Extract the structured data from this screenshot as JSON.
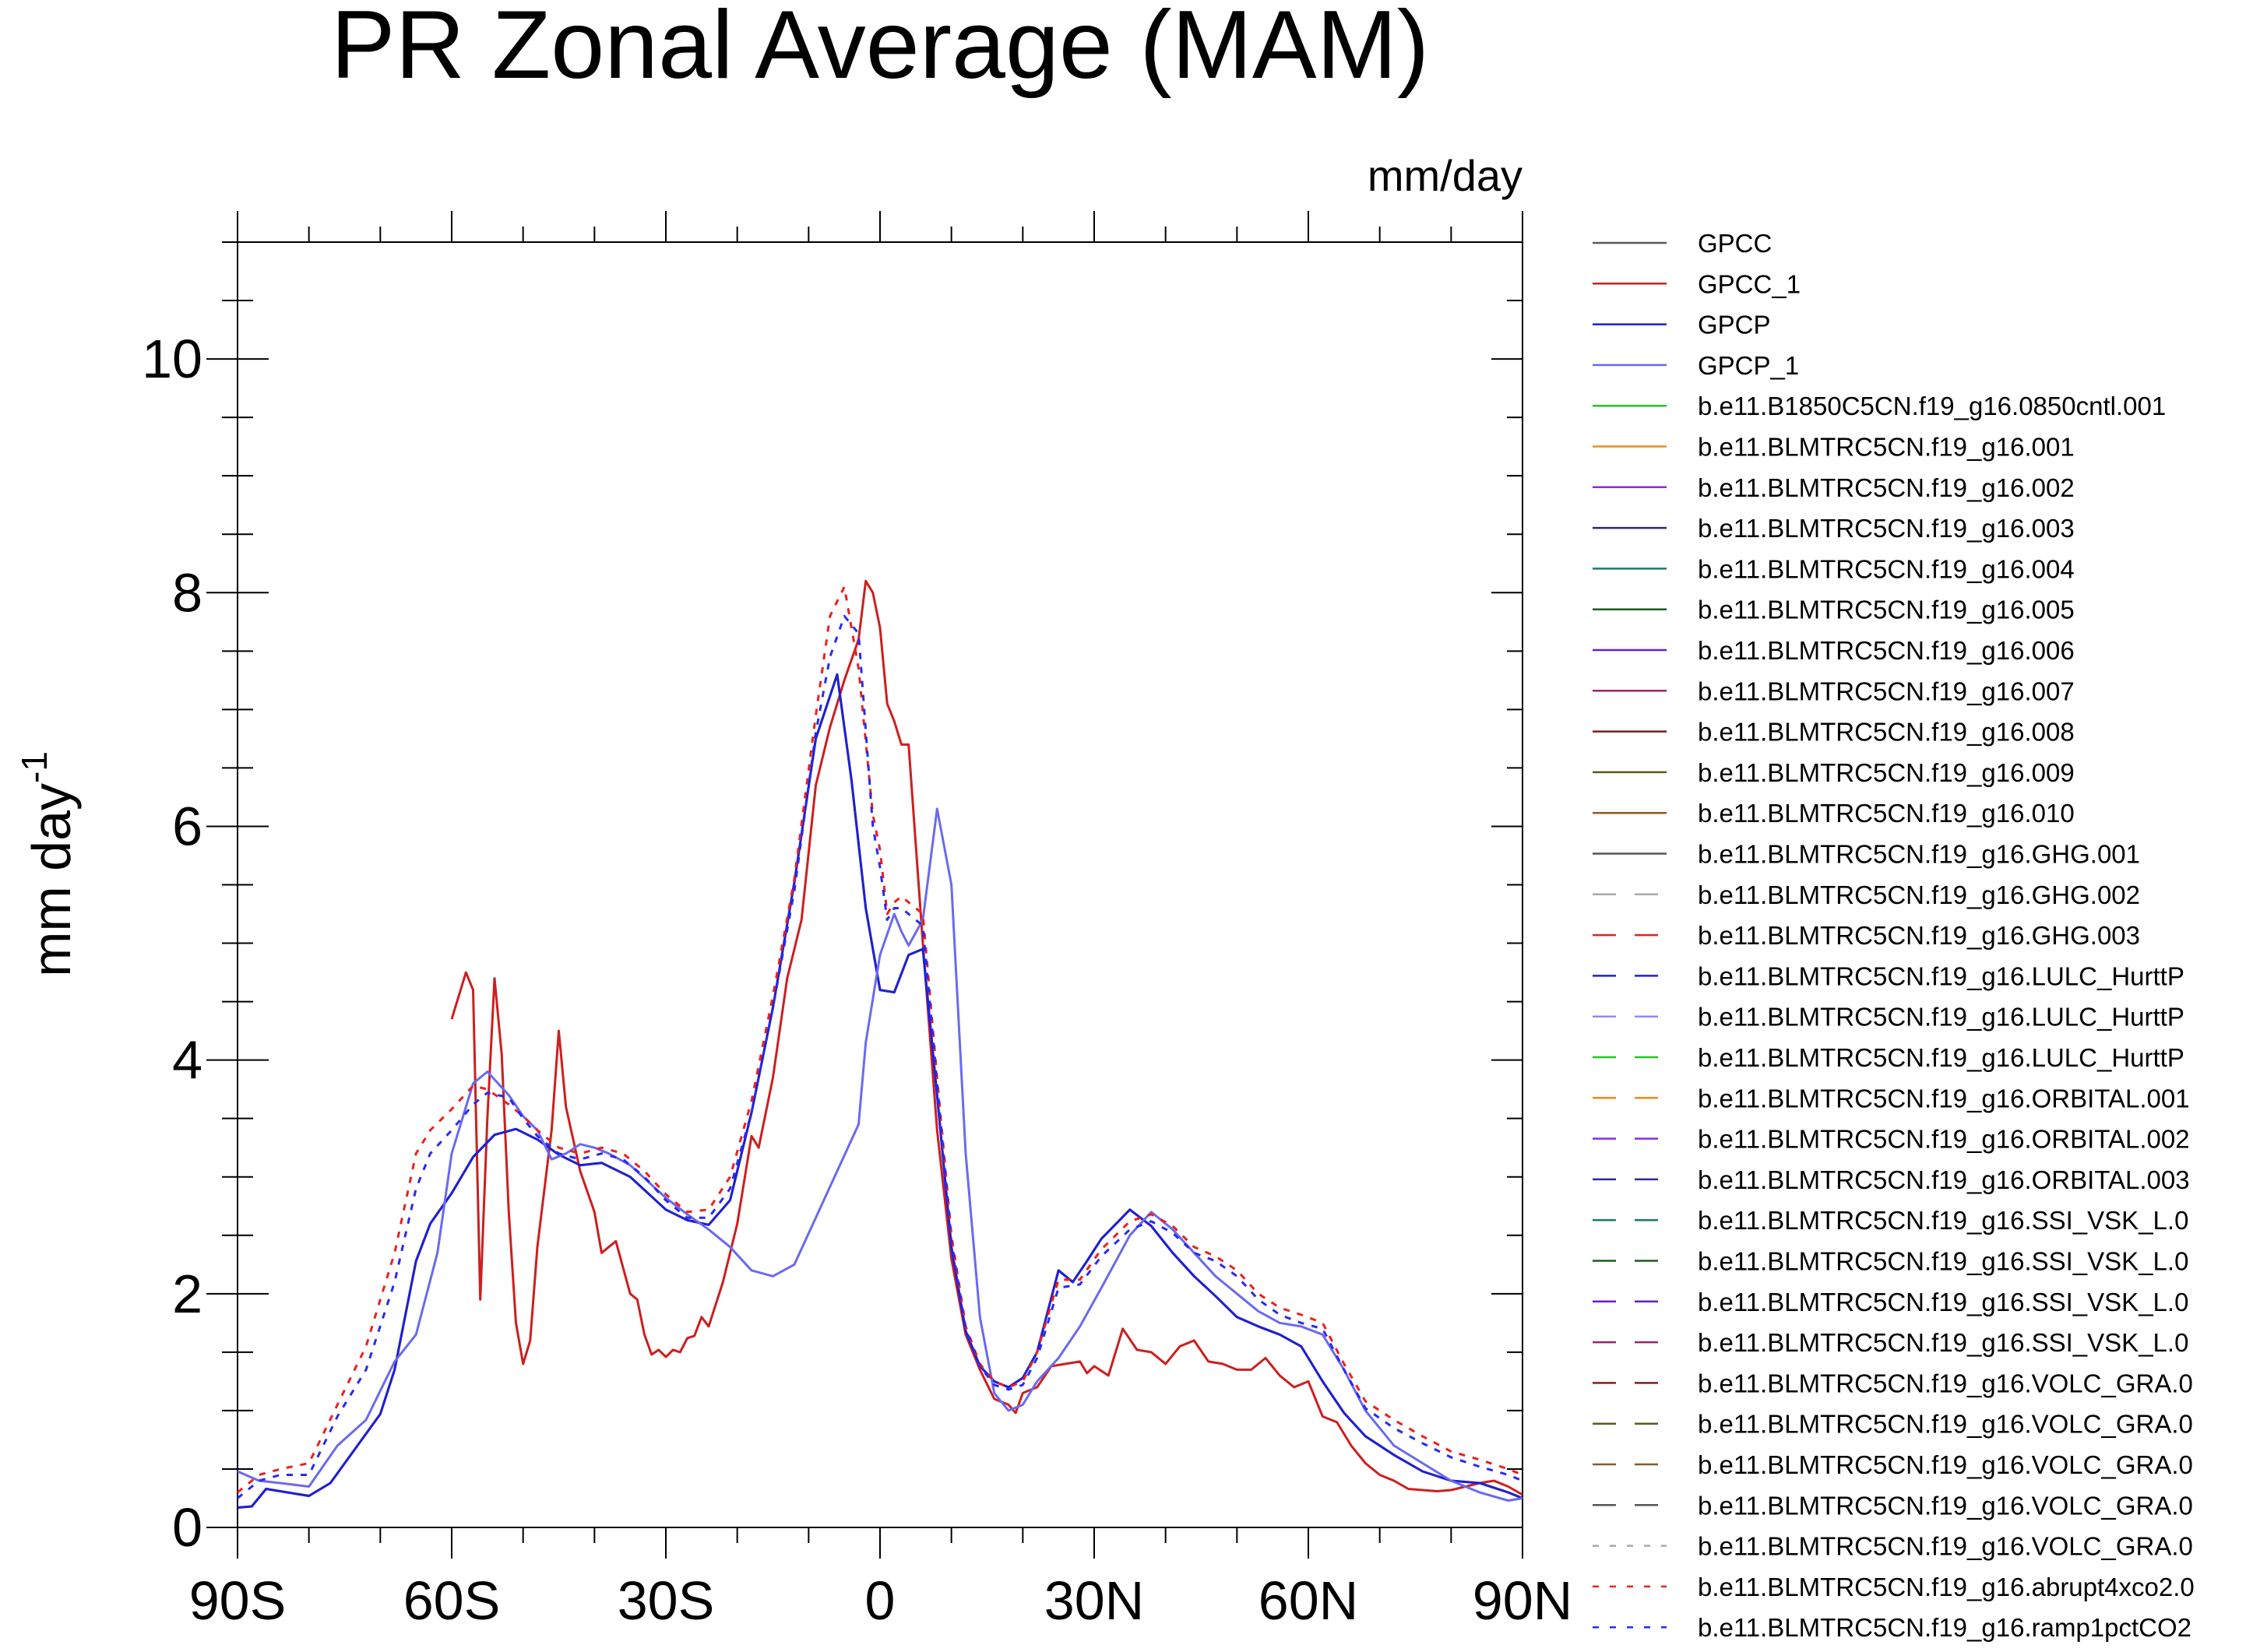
{
  "chart_data": {
    "type": "line",
    "title": "PR Zonal Average (MAM)",
    "units": "mm/day",
    "ylabel": "mm day",
    "ylabel_exponent": "-1",
    "xlim": [
      -90,
      90
    ],
    "ylim": [
      0,
      11
    ],
    "x_ticks": [
      {
        "value": -90,
        "label": "90S"
      },
      {
        "value": -60,
        "label": "60S"
      },
      {
        "value": -30,
        "label": "30S"
      },
      {
        "value": 0,
        "label": "0"
      },
      {
        "value": 30,
        "label": "30N"
      },
      {
        "value": 60,
        "label": "60N"
      },
      {
        "value": 90,
        "label": "90N"
      }
    ],
    "y_ticks": [
      {
        "value": 0,
        "label": "0"
      },
      {
        "value": 2,
        "label": "2"
      },
      {
        "value": 4,
        "label": "4"
      },
      {
        "value": 6,
        "label": "6"
      },
      {
        "value": 8,
        "label": "8"
      },
      {
        "value": 10,
        "label": "10"
      }
    ],
    "grid": false,
    "legend_position": "right",
    "series": [
      {
        "name": "GPCC",
        "color": "#5a5a5a",
        "dash": "solid",
        "x": [
          -90,
          -88,
          -86,
          -80,
          -77,
          -70,
          -68,
          -65,
          -63,
          -60,
          -57,
          -54,
          -51,
          -48,
          -45,
          -42,
          -39,
          -35,
          -30,
          -27,
          -24,
          -21,
          -18,
          -15,
          -12,
          -9,
          -6,
          -4,
          -2,
          0,
          2,
          4,
          6,
          8,
          10,
          12,
          14,
          16,
          18,
          20,
          22,
          25,
          27,
          29,
          31,
          35,
          38,
          41,
          44,
          47,
          50,
          53,
          56,
          59,
          62,
          65,
          68,
          72,
          76,
          80,
          84,
          88,
          90
        ],
        "y": [
          0.17,
          0.18,
          0.33,
          0.27,
          0.38,
          0.97,
          1.35,
          2.28,
          2.6,
          2.86,
          3.17,
          3.36,
          3.41,
          3.32,
          3.19,
          3.1,
          3.12,
          3.0,
          2.72,
          2.63,
          2.59,
          2.8,
          3.55,
          4.45,
          5.52,
          6.75,
          7.3,
          6.4,
          5.3,
          4.6,
          4.58,
          4.9,
          4.95,
          3.7,
          2.4,
          1.68,
          1.38,
          1.25,
          1.2,
          1.28,
          1.5,
          2.2,
          2.1,
          2.28,
          2.47,
          2.72,
          2.58,
          2.35,
          2.15,
          1.98,
          1.8,
          1.72,
          1.65,
          1.55,
          1.25,
          0.98,
          0.78,
          0.62,
          0.48,
          0.4,
          0.38,
          0.3,
          0.25
        ]
      },
      {
        "name": "GPCC_1",
        "color": "#cc1f1f",
        "dash": "solid",
        "x": [
          -60,
          -58,
          -57,
          -56,
          -55,
          -54,
          -53,
          -52,
          -51,
          -50,
          -49,
          -48,
          -46,
          -45,
          -44,
          -42,
          -40,
          -39,
          -37,
          -35,
          -34,
          -33,
          -32,
          -31,
          -30,
          -29,
          -28,
          -27,
          -26,
          -25,
          -24,
          -22,
          -20,
          -18,
          -17,
          -15,
          -13,
          -11,
          -9,
          -7,
          -5,
          -3,
          -2,
          -1,
          0,
          1,
          2,
          3,
          4,
          6,
          8,
          10,
          12,
          14,
          16,
          18,
          19,
          20,
          22,
          24,
          26,
          28,
          29,
          30,
          32,
          34,
          36,
          38,
          40,
          42,
          44,
          46,
          48,
          50,
          52,
          54,
          56,
          58,
          60,
          62,
          64,
          66,
          68,
          70,
          72,
          74,
          76,
          78,
          80,
          82,
          84,
          86,
          88,
          90
        ],
        "y": [
          4.35,
          4.75,
          4.6,
          1.95,
          3.5,
          4.7,
          4.05,
          2.7,
          1.75,
          1.4,
          1.6,
          2.4,
          3.4,
          4.25,
          3.6,
          3.05,
          2.7,
          2.35,
          2.45,
          2.0,
          1.95,
          1.65,
          1.48,
          1.52,
          1.46,
          1.52,
          1.5,
          1.62,
          1.64,
          1.8,
          1.72,
          2.1,
          2.6,
          3.35,
          3.25,
          3.85,
          4.7,
          5.2,
          6.35,
          6.85,
          7.25,
          7.6,
          8.1,
          8.0,
          7.7,
          7.05,
          6.9,
          6.7,
          6.7,
          5.0,
          3.4,
          2.3,
          1.65,
          1.35,
          1.1,
          1.05,
          0.98,
          1.15,
          1.2,
          1.38,
          1.4,
          1.42,
          1.32,
          1.38,
          1.3,
          1.7,
          1.52,
          1.5,
          1.4,
          1.55,
          1.6,
          1.42,
          1.4,
          1.35,
          1.35,
          1.45,
          1.3,
          1.2,
          1.25,
          0.95,
          0.9,
          0.7,
          0.55,
          0.45,
          0.4,
          0.33,
          0.32,
          0.31,
          0.32,
          0.35,
          0.38,
          0.4,
          0.35,
          0.28
        ]
      },
      {
        "name": "GPCP",
        "color": "#1f1fd6",
        "dash": "solid",
        "x": [
          -90,
          -88,
          -86,
          -80,
          -77,
          -70,
          -68,
          -65,
          -63,
          -60,
          -57,
          -54,
          -51,
          -48,
          -45,
          -42,
          -39,
          -35,
          -30,
          -27,
          -24,
          -21,
          -18,
          -15,
          -12,
          -9,
          -6,
          -4,
          -2,
          0,
          2,
          4,
          6,
          8,
          10,
          12,
          14,
          16,
          18,
          20,
          22,
          25,
          27,
          29,
          31,
          35,
          38,
          41,
          44,
          47,
          50,
          53,
          56,
          59,
          62,
          65,
          68,
          72,
          76,
          80,
          84,
          88,
          90
        ],
        "y": [
          0.17,
          0.18,
          0.33,
          0.27,
          0.38,
          0.97,
          1.35,
          2.28,
          2.6,
          2.86,
          3.17,
          3.36,
          3.41,
          3.32,
          3.19,
          3.1,
          3.12,
          3.0,
          2.72,
          2.63,
          2.59,
          2.8,
          3.55,
          4.45,
          5.52,
          6.75,
          7.3,
          6.4,
          5.3,
          4.6,
          4.58,
          4.9,
          4.95,
          3.7,
          2.4,
          1.68,
          1.38,
          1.25,
          1.2,
          1.28,
          1.5,
          2.2,
          2.1,
          2.28,
          2.47,
          2.72,
          2.58,
          2.35,
          2.15,
          1.98,
          1.8,
          1.72,
          1.65,
          1.55,
          1.25,
          0.98,
          0.78,
          0.62,
          0.48,
          0.4,
          0.38,
          0.3,
          0.25
        ]
      },
      {
        "name": "GPCP_1",
        "color": "#6a6af0",
        "dash": "solid",
        "x": [
          -90,
          -87,
          -84,
          -80,
          -76,
          -72,
          -68,
          -65,
          -62,
          -60,
          -57,
          -55,
          -52,
          -50,
          -48,
          -46,
          -44,
          -42,
          -40,
          -38,
          -35,
          -30,
          -27,
          -24,
          -21,
          -18,
          -15,
          -12,
          -9,
          -6,
          -3,
          -2,
          0,
          2,
          3,
          4,
          6,
          8,
          10,
          12,
          14,
          16,
          18,
          20,
          22,
          25,
          28,
          31,
          35,
          38,
          41,
          44,
          47,
          50,
          53,
          56,
          59,
          62,
          65,
          68,
          72,
          76,
          80,
          84,
          88,
          90
        ],
        "y": [
          0.48,
          0.4,
          0.38,
          0.35,
          0.7,
          0.92,
          1.42,
          1.65,
          2.35,
          3.2,
          3.8,
          3.9,
          3.7,
          3.52,
          3.4,
          3.15,
          3.2,
          3.28,
          3.25,
          3.2,
          3.1,
          2.82,
          2.68,
          2.55,
          2.4,
          2.2,
          2.15,
          2.25,
          2.65,
          3.05,
          3.45,
          4.15,
          4.9,
          5.25,
          5.1,
          4.98,
          5.2,
          6.15,
          5.5,
          3.2,
          1.8,
          1.15,
          1.0,
          1.05,
          1.25,
          1.45,
          1.72,
          2.05,
          2.5,
          2.7,
          2.55,
          2.35,
          2.15,
          2.0,
          1.85,
          1.75,
          1.72,
          1.65,
          1.35,
          1.0,
          0.7,
          0.55,
          0.4,
          0.3,
          0.23,
          0.25
        ]
      },
      {
        "name": "b.e11.B1850C5CN.f19_g16.0850cntl.001",
        "color": "#22c522",
        "dash": "solid"
      },
      {
        "name": "b.e11.BLMTRC5CN.f19_g16.001",
        "color": "#f28a1d",
        "dash": "solid"
      },
      {
        "name": "b.e11.BLMTRC5CN.f19_g16.002",
        "color": "#8a2be2",
        "dash": "solid"
      },
      {
        "name": "b.e11.BLMTRC5CN.f19_g16.003",
        "color": "#2a2a6e",
        "dash": "solid"
      },
      {
        "name": "b.e11.BLMTRC5CN.f19_g16.004",
        "color": "#1a7a6e",
        "dash": "solid"
      },
      {
        "name": "b.e11.BLMTRC5CN.f19_g16.005",
        "color": "#1e5a1e",
        "dash": "solid"
      },
      {
        "name": "b.e11.BLMTRC5CN.f19_g16.006",
        "color": "#6a1bd0",
        "dash": "solid"
      },
      {
        "name": "b.e11.BLMTRC5CN.f19_g16.007",
        "color": "#a0206a",
        "dash": "solid"
      },
      {
        "name": "b.e11.BLMTRC5CN.f19_g16.008",
        "color": "#7a1f1f",
        "dash": "solid"
      },
      {
        "name": "b.e11.BLMTRC5CN.f19_g16.009",
        "color": "#5a5a1a",
        "dash": "solid"
      },
      {
        "name": "b.e11.BLMTRC5CN.f19_g16.010",
        "color": "#8a5a2a",
        "dash": "solid"
      },
      {
        "name": "b.e11.BLMTRC5CN.f19_g16.GHG.001",
        "color": "#555555",
        "dash": "solid"
      },
      {
        "name": "b.e11.BLMTRC5CN.f19_g16.GHG.002",
        "color": "#a8a8a8",
        "dash": "dash"
      },
      {
        "name": "b.e11.BLMTRC5CN.f19_g16.GHG.003",
        "color": "#dd2222",
        "dash": "dash"
      },
      {
        "name": "b.e11.BLMTRC5CN.f19_g16.LULC_HurttP",
        "color": "#1f1fd6",
        "dash": "dash"
      },
      {
        "name": "b.e11.BLMTRC5CN.f19_g16.LULC_HurttP",
        "color": "#8c8cf5",
        "dash": "dash"
      },
      {
        "name": "b.e11.BLMTRC5CN.f19_g16.LULC_HurttP",
        "color": "#22c522",
        "dash": "dash"
      },
      {
        "name": "b.e11.BLMTRC5CN.f19_g16.ORBITAL.001",
        "color": "#f28a1d",
        "dash": "dash"
      },
      {
        "name": "b.e11.BLMTRC5CN.f19_g16.ORBITAL.002",
        "color": "#8a2be2",
        "dash": "dash"
      },
      {
        "name": "b.e11.BLMTRC5CN.f19_g16.ORBITAL.003",
        "color": "#2a2a9e",
        "dash": "dash"
      },
      {
        "name": "b.e11.BLMTRC5CN.f19_g16.SSI_VSK_L.0",
        "color": "#1a7a6e",
        "dash": "dash"
      },
      {
        "name": "b.e11.BLMTRC5CN.f19_g16.SSI_VSK_L.0",
        "color": "#1e5a1e",
        "dash": "dash"
      },
      {
        "name": "b.e11.BLMTRC5CN.f19_g16.SSI_VSK_L.0",
        "color": "#6a1bd0",
        "dash": "dash"
      },
      {
        "name": "b.e11.BLMTRC5CN.f19_g16.SSI_VSK_L.0",
        "color": "#a0206a",
        "dash": "dash"
      },
      {
        "name": "b.e11.BLMTRC5CN.f19_g16.VOLC_GRA.0",
        "color": "#7a1f1f",
        "dash": "dash"
      },
      {
        "name": "b.e11.BLMTRC5CN.f19_g16.VOLC_GRA.0",
        "color": "#5a5a1a",
        "dash": "dash"
      },
      {
        "name": "b.e11.BLMTRC5CN.f19_g16.VOLC_GRA.0",
        "color": "#8a5a2a",
        "dash": "dash"
      },
      {
        "name": "b.e11.BLMTRC5CN.f19_g16.VOLC_GRA.0",
        "color": "#555555",
        "dash": "dash"
      },
      {
        "name": "b.e11.BLMTRC5CN.f19_g16.VOLC_GRA.0",
        "color": "#a8a8a8",
        "dash": "dot"
      },
      {
        "name": "b.e11.BLMTRC5CN.f19_g16.abrupt4xco2.0",
        "color": "#ee1f1f",
        "dash": "dot",
        "x": [
          -90,
          -87,
          -84,
          -80,
          -76,
          -72,
          -68,
          -65,
          -63,
          -60,
          -57,
          -55,
          -52,
          -50,
          -48,
          -45,
          -42,
          -39,
          -36,
          -33,
          -30,
          -27,
          -24,
          -21,
          -18,
          -15,
          -12,
          -9,
          -7,
          -5,
          -3,
          -1,
          0,
          1,
          2,
          3,
          4,
          6,
          8,
          10,
          12,
          14,
          16,
          18,
          20,
          22,
          25,
          28,
          31,
          35,
          38,
          41,
          44,
          47,
          50,
          53,
          56,
          59,
          62,
          65,
          68,
          72,
          76,
          80,
          84,
          88,
          90
        ],
        "y": [
          0.3,
          0.45,
          0.5,
          0.55,
          1.05,
          1.55,
          2.35,
          3.2,
          3.4,
          3.58,
          3.78,
          3.75,
          3.62,
          3.52,
          3.4,
          3.25,
          3.2,
          3.25,
          3.2,
          3.05,
          2.85,
          2.7,
          2.72,
          3.0,
          3.65,
          4.55,
          5.55,
          6.95,
          7.8,
          8.05,
          7.35,
          6.1,
          5.8,
          5.25,
          5.35,
          5.4,
          5.35,
          5.25,
          3.85,
          2.5,
          1.72,
          1.4,
          1.25,
          1.2,
          1.25,
          1.5,
          2.12,
          2.12,
          2.38,
          2.62,
          2.68,
          2.58,
          2.4,
          2.32,
          2.2,
          2.0,
          1.88,
          1.82,
          1.75,
          1.4,
          1.08,
          0.92,
          0.78,
          0.65,
          0.58,
          0.5,
          0.45
        ]
      },
      {
        "name": "b.e11.BLMTRC5CN.f19_g16.ramp1pctCO2",
        "color": "#2a2af0",
        "dash": "dot",
        "x": [
          -90,
          -87,
          -84,
          -80,
          -76,
          -72,
          -68,
          -65,
          -63,
          -60,
          -57,
          -55,
          -52,
          -50,
          -48,
          -45,
          -42,
          -39,
          -36,
          -33,
          -30,
          -27,
          -24,
          -21,
          -18,
          -15,
          -12,
          -9,
          -7,
          -5,
          -3,
          -1,
          0,
          1,
          2,
          3,
          4,
          6,
          8,
          10,
          12,
          14,
          16,
          18,
          20,
          22,
          25,
          28,
          31,
          35,
          38,
          41,
          44,
          47,
          50,
          53,
          56,
          59,
          62,
          65,
          68,
          72,
          76,
          80,
          84,
          88,
          90
        ],
        "y": [
          0.25,
          0.4,
          0.45,
          0.45,
          0.95,
          1.35,
          2.1,
          2.9,
          3.2,
          3.4,
          3.62,
          3.72,
          3.68,
          3.5,
          3.35,
          3.2,
          3.15,
          3.2,
          3.15,
          3.0,
          2.8,
          2.65,
          2.65,
          2.9,
          3.55,
          4.45,
          5.45,
          6.8,
          7.45,
          7.8,
          7.65,
          6.0,
          5.65,
          5.2,
          5.3,
          5.3,
          5.25,
          5.15,
          3.8,
          2.45,
          1.7,
          1.38,
          1.22,
          1.18,
          1.22,
          1.45,
          2.05,
          2.08,
          2.32,
          2.55,
          2.62,
          2.52,
          2.35,
          2.28,
          2.15,
          1.95,
          1.82,
          1.75,
          1.7,
          1.35,
          1.02,
          0.85,
          0.72,
          0.6,
          0.52,
          0.45,
          0.4
        ]
      }
    ]
  }
}
